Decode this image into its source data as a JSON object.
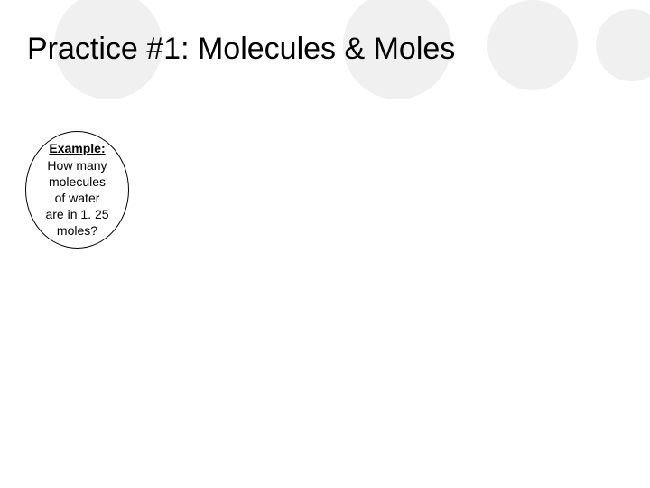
{
  "slide": {
    "title": "Practice #1: Molecules & Moles",
    "example": {
      "label": "Example:",
      "line1": "How many",
      "line2": "molecules",
      "line3": "of water",
      "line4": "are in 1. 25",
      "line5": "moles?"
    },
    "colors": {
      "background": "#ffffff",
      "circle_bg": "#f0f0f0",
      "text": "#000000",
      "border": "#000000"
    }
  }
}
